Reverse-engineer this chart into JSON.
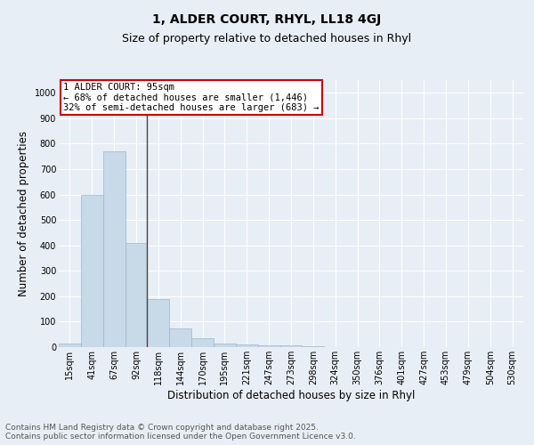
{
  "title": "1, ALDER COURT, RHYL, LL18 4GJ",
  "subtitle": "Size of property relative to detached houses in Rhyl",
  "xlabel": "Distribution of detached houses by size in Rhyl",
  "ylabel": "Number of detached properties",
  "bin_labels": [
    "15sqm",
    "41sqm",
    "67sqm",
    "92sqm",
    "118sqm",
    "144sqm",
    "170sqm",
    "195sqm",
    "221sqm",
    "247sqm",
    "273sqm",
    "298sqm",
    "324sqm",
    "350sqm",
    "376sqm",
    "401sqm",
    "427sqm",
    "453sqm",
    "479sqm",
    "504sqm",
    "530sqm"
  ],
  "bar_values": [
    15,
    600,
    770,
    410,
    190,
    75,
    35,
    15,
    10,
    8,
    8,
    5,
    0,
    0,
    0,
    0,
    0,
    0,
    0,
    0,
    0
  ],
  "bar_color": "#c8d9e8",
  "bar_edgecolor": "#9ab8d0",
  "property_bin_index": 3,
  "vline_color": "#444444",
  "annotation_text": "1 ALDER COURT: 95sqm\n← 68% of detached houses are smaller (1,446)\n32% of semi-detached houses are larger (683) →",
  "annotation_box_facecolor": "#ffffff",
  "annotation_box_edgecolor": "#cc0000",
  "ylim": [
    0,
    1050
  ],
  "yticks": [
    0,
    100,
    200,
    300,
    400,
    500,
    600,
    700,
    800,
    900,
    1000
  ],
  "background_color": "#e8eef5",
  "grid_color": "#ffffff",
  "footer_text": "Contains HM Land Registry data © Crown copyright and database right 2025.\nContains public sector information licensed under the Open Government Licence v3.0.",
  "title_fontsize": 10,
  "subtitle_fontsize": 9,
  "axis_label_fontsize": 8.5,
  "tick_fontsize": 7,
  "annotation_fontsize": 7.5,
  "footer_fontsize": 6.5,
  "bar_width": 1.0
}
